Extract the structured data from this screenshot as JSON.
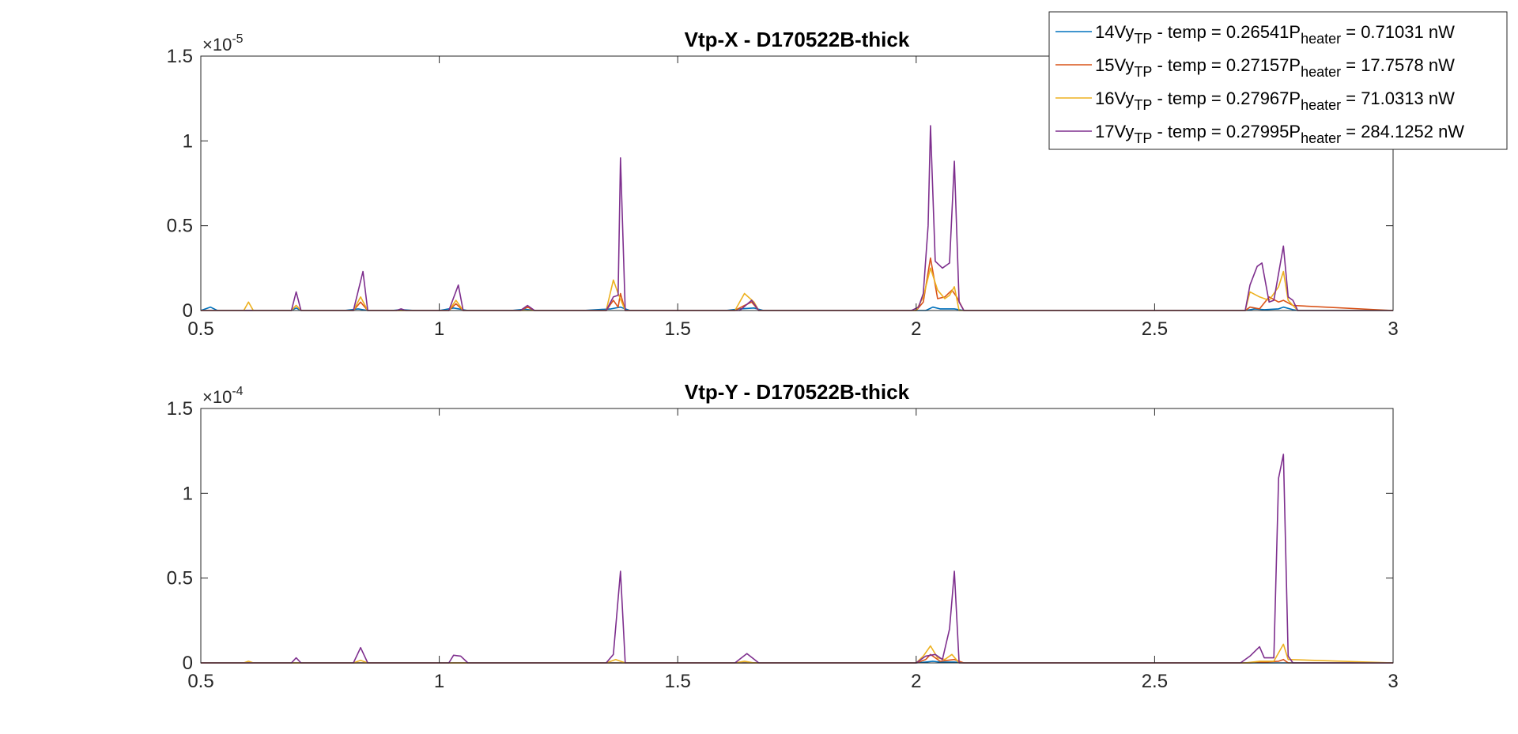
{
  "chart_data": [
    {
      "type": "line",
      "title": "Vtp-X - D170522B-thick",
      "xlim": [
        0.5,
        3
      ],
      "ylim": [
        0,
        1.5e-05
      ],
      "y_exponent_label": "×10",
      "y_exponent": "-5",
      "x_ticks": [
        "0.5",
        "1",
        "1.5",
        "2",
        "2.5",
        "3"
      ],
      "y_ticks": [
        "0",
        "0.5",
        "1",
        "1.5"
      ],
      "grid": false,
      "legend_position": "top-right",
      "series": [
        {
          "name": "14Vy_TP - temp = 0.26541P_heater = 0.71031 nW",
          "legend": {
            "a": "14Vy",
            "b": "TP",
            "c": " - temp = 0.26541P",
            "d": "heater",
            "e": " = 0.71031 nW"
          },
          "color": "#0072BD",
          "x": [
            0.5,
            0.52,
            0.535,
            0.55,
            0.6,
            0.69,
            0.7,
            0.71,
            0.8,
            0.83,
            0.85,
            0.9,
            0.92,
            0.95,
            1.0,
            1.03,
            1.06,
            1.15,
            1.18,
            1.2,
            1.3,
            1.36,
            1.38,
            1.4,
            1.6,
            1.63,
            1.66,
            1.68,
            2.0,
            2.02,
            2.035,
            2.05,
            2.08,
            2.1,
            2.5,
            2.69,
            2.71,
            2.73,
            2.76,
            2.77,
            2.79,
            2.8,
            3.0
          ],
          "y": [
            0,
            2e-07,
            0,
            0,
            0,
            0,
            1.5e-07,
            0,
            0,
            1e-07,
            0,
            0,
            5e-08,
            0,
            0,
            1.5e-07,
            0,
            0,
            8e-08,
            0,
            0,
            1e-07,
            2e-07,
            0,
            0,
            1e-07,
            1.5e-07,
            0,
            0,
            0,
            2e-07,
            1e-07,
            1e-07,
            0,
            0,
            0,
            1e-07,
            5e-08,
            1e-07,
            2e-07,
            5e-08,
            0,
            0
          ]
        },
        {
          "name": "15Vy_TP - temp = 0.27157P_heater = 17.7578 nW",
          "legend": {
            "a": "15Vy",
            "b": "TP",
            "c": " - temp = 0.27157P",
            "d": "heater",
            "e": " = 17.7578 nW"
          },
          "color": "#D95319",
          "x": [
            0.5,
            0.6,
            0.69,
            0.7,
            0.71,
            0.82,
            0.835,
            0.85,
            1.02,
            1.035,
            1.05,
            1.17,
            1.185,
            1.2,
            1.35,
            1.365,
            1.375,
            1.38,
            1.39,
            1.62,
            1.64,
            1.655,
            1.67,
            2.0,
            2.015,
            2.03,
            2.045,
            2.06,
            2.075,
            2.085,
            2.1,
            2.6,
            2.69,
            2.7,
            2.72,
            2.74,
            2.76,
            2.77,
            2.79,
            3.0
          ],
          "y": [
            0,
            0,
            0,
            3e-07,
            0,
            0,
            5e-07,
            0,
            0,
            4e-07,
            0,
            0,
            2e-07,
            0,
            0,
            6e-07,
            2e-07,
            1e-06,
            0,
            0,
            3e-07,
            5e-07,
            0,
            0,
            5e-07,
            3.1e-06,
            7e-07,
            8e-07,
            1.2e-06,
            8e-07,
            0,
            0,
            0,
            2e-07,
            1e-07,
            8e-07,
            5e-07,
            6e-07,
            3e-07,
            0
          ]
        },
        {
          "name": "16Vy_TP - temp = 0.27967P_heater = 71.0313 nW",
          "legend": {
            "a": "16Vy",
            "b": "TP",
            "c": " - temp = 0.27967P",
            "d": "heater",
            "e": " = 71.0313 nW"
          },
          "color": "#EDB120",
          "x": [
            0.5,
            0.59,
            0.6,
            0.61,
            0.69,
            0.7,
            0.71,
            0.82,
            0.835,
            0.85,
            1.02,
            1.035,
            1.05,
            1.35,
            1.365,
            1.375,
            1.39,
            1.62,
            1.64,
            1.66,
            1.67,
            2.0,
            2.015,
            2.03,
            2.045,
            2.06,
            2.07,
            2.08,
            2.09,
            2.6,
            2.69,
            2.7,
            2.72,
            2.74,
            2.76,
            2.77,
            2.78,
            2.8,
            3.0
          ],
          "y": [
            0,
            0,
            5e-07,
            0,
            0,
            3e-07,
            0,
            0,
            8e-07,
            0,
            0,
            6e-07,
            0,
            0,
            1.8e-06,
            1e-06,
            0,
            0,
            1e-06,
            5e-07,
            0,
            0,
            8e-07,
            2.5e-06,
            1.2e-06,
            7e-07,
            9e-07,
            1.4e-06,
            0,
            0,
            0,
            1.1e-06,
            8e-07,
            6e-07,
            1.4e-06,
            2.3e-06,
            6e-07,
            0,
            0
          ]
        },
        {
          "name": "17Vy_TP - temp = 0.27995P_heater = 284.1252 nW",
          "legend": {
            "a": "17Vy",
            "b": "TP",
            "c": " - temp = 0.27995P",
            "d": "heater",
            "e": " = 284.1252 nW"
          },
          "color": "#7E2F8E",
          "x": [
            0.5,
            0.69,
            0.7,
            0.71,
            0.82,
            0.84,
            0.85,
            0.91,
            0.92,
            0.93,
            1.02,
            1.04,
            1.05,
            1.17,
            1.185,
            1.2,
            1.35,
            1.365,
            1.375,
            1.38,
            1.39,
            1.63,
            1.655,
            1.67,
            1.99,
            2.005,
            2.015,
            2.025,
            2.03,
            2.04,
            2.055,
            2.07,
            2.08,
            2.09,
            2.1,
            2.6,
            2.69,
            2.7,
            2.715,
            2.725,
            2.74,
            2.75,
            2.77,
            2.78,
            2.79,
            2.8,
            3.0
          ],
          "y": [
            0,
            0,
            1.1e-06,
            0,
            0,
            2.3e-06,
            0,
            0,
            1e-07,
            0,
            0,
            1.5e-06,
            0,
            0,
            3e-07,
            0,
            0,
            8e-07,
            9e-07,
            9e-06,
            0,
            0,
            6e-07,
            0,
            0,
            2e-07,
            1e-06,
            5e-06,
            1.09e-05,
            2.9e-06,
            2.5e-06,
            2.8e-06,
            8.8e-06,
            5e-07,
            0,
            0,
            0,
            1.5e-06,
            2.6e-06,
            2.8e-06,
            5e-07,
            6e-07,
            3.8e-06,
            8e-07,
            6e-07,
            0,
            0
          ]
        }
      ]
    },
    {
      "type": "line",
      "title": "Vtp-Y - D170522B-thick",
      "xlim": [
        0.5,
        3
      ],
      "ylim": [
        0,
        0.00015
      ],
      "y_exponent_label": "×10",
      "y_exponent": "-4",
      "x_ticks": [
        "0.5",
        "1",
        "1.5",
        "2",
        "2.5",
        "3"
      ],
      "y_ticks": [
        "0",
        "0.5",
        "1",
        "1.5"
      ],
      "grid": false,
      "series": [
        {
          "name": "14Vy_TP - temp = 0.26541P_heater = 0.71031 nW",
          "color": "#0072BD",
          "x": [
            0.5,
            2.0,
            2.02,
            2.035,
            2.05,
            2.08,
            2.1,
            3.0
          ],
          "y": [
            0,
            0,
            5e-07,
            1e-06,
            5e-07,
            5e-07,
            0,
            0
          ]
        },
        {
          "name": "15Vy_TP - temp = 0.27157P_heater = 17.7578 nW",
          "color": "#D95319",
          "x": [
            0.5,
            2.0,
            2.02,
            2.03,
            2.05,
            2.08,
            2.1,
            2.7,
            2.76,
            2.77,
            2.78,
            3.0
          ],
          "y": [
            0,
            0,
            2e-06,
            5e-06,
            1e-06,
            2e-06,
            0,
            0,
            1e-06,
            2e-06,
            0,
            0
          ]
        },
        {
          "name": "16Vy_TP - temp = 0.27967P_heater = 71.0313 nW",
          "color": "#EDB120",
          "x": [
            0.5,
            0.59,
            0.6,
            0.61,
            0.82,
            0.835,
            0.85,
            1.35,
            1.37,
            1.39,
            1.62,
            1.64,
            1.66,
            2.0,
            2.015,
            2.03,
            2.045,
            2.06,
            2.075,
            2.09,
            2.6,
            2.69,
            2.72,
            2.75,
            2.77,
            2.78,
            3.0
          ],
          "y": [
            0,
            0,
            1e-06,
            0,
            0,
            1.5e-06,
            0,
            0,
            2e-06,
            0,
            0,
            1e-06,
            0,
            0,
            4e-06,
            1e-05,
            3e-06,
            2e-06,
            5e-06,
            0,
            0,
            0,
            1e-06,
            1e-06,
            1.1e-05,
            2e-06,
            0
          ]
        },
        {
          "name": "17Vy_TP - temp = 0.27995P_heater = 284.1252 nW",
          "color": "#7E2F8E",
          "x": [
            0.5,
            0.69,
            0.7,
            0.71,
            0.82,
            0.835,
            0.85,
            1.02,
            1.03,
            1.045,
            1.06,
            1.35,
            1.365,
            1.38,
            1.39,
            1.62,
            1.645,
            1.67,
            2.0,
            2.02,
            2.04,
            2.055,
            2.07,
            2.08,
            2.09,
            2.6,
            2.68,
            2.7,
            2.72,
            2.73,
            2.75,
            2.76,
            2.77,
            2.78,
            2.79,
            3.0
          ],
          "y": [
            0,
            0,
            3e-06,
            0,
            0,
            9e-06,
            0,
            0,
            4.5e-06,
            4e-06,
            0,
            0,
            5e-06,
            5.4e-05,
            0,
            0,
            5.5e-06,
            0,
            0,
            4e-06,
            5e-06,
            2e-06,
            2e-05,
            5.4e-05,
            0,
            0,
            0,
            4e-06,
            9.5e-06,
            3e-06,
            3e-06,
            0.000109,
            0.000123,
            4e-06,
            0,
            0
          ]
        }
      ]
    }
  ]
}
